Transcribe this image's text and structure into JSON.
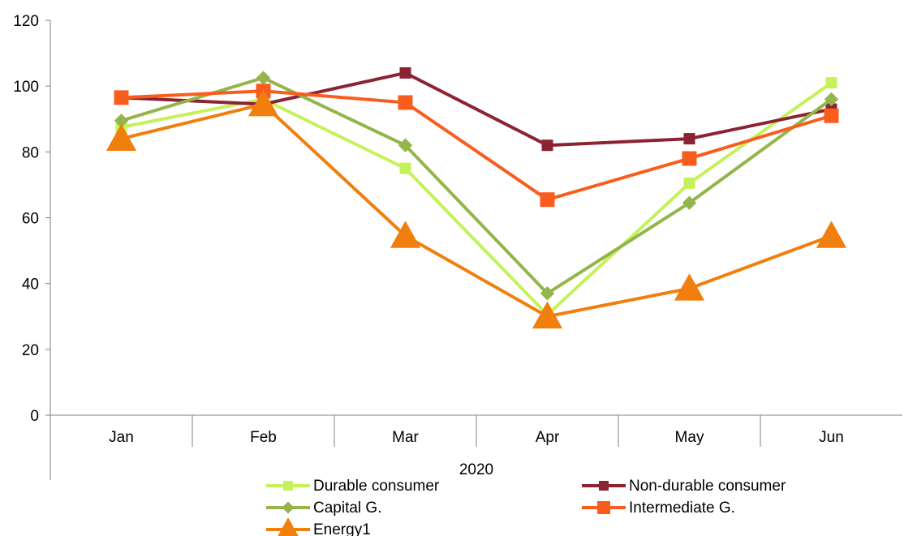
{
  "chart_data": {
    "type": "line",
    "title": "",
    "xlabel": "",
    "ylabel": "",
    "group_label": "2020",
    "categories": [
      "Jan",
      "Feb",
      "Mar",
      "Apr",
      "May",
      "Jun"
    ],
    "ylim": [
      0,
      120
    ],
    "yticks": [
      "0",
      "20",
      "40",
      "60",
      "80",
      "100",
      "120"
    ],
    "grid": false,
    "legend_position": "bottom",
    "series": [
      {
        "name": "Durable consumer",
        "color": "#c5f25a",
        "marker": "square",
        "values": [
          87.5,
          96,
          75,
          30.5,
          70.5,
          101
        ]
      },
      {
        "name": "Non-durable consumer",
        "color": "#8b2332",
        "marker": "square",
        "values": [
          96.5,
          94.5,
          104,
          82,
          84,
          93
        ]
      },
      {
        "name": "Capital G.",
        "color": "#93b549",
        "marker": "diamond",
        "values": [
          89.5,
          102.5,
          82,
          37,
          64.5,
          96
        ]
      },
      {
        "name": "Intermediate G.",
        "color": "#f95d1e",
        "marker": "square",
        "values": [
          96.5,
          98.5,
          95,
          65.5,
          78,
          91
        ]
      },
      {
        "name": "Energy1",
        "color": "#f07f0e",
        "marker": "triangle",
        "values": [
          84,
          94.5,
          54.5,
          30,
          38.5,
          54.5
        ]
      }
    ]
  }
}
